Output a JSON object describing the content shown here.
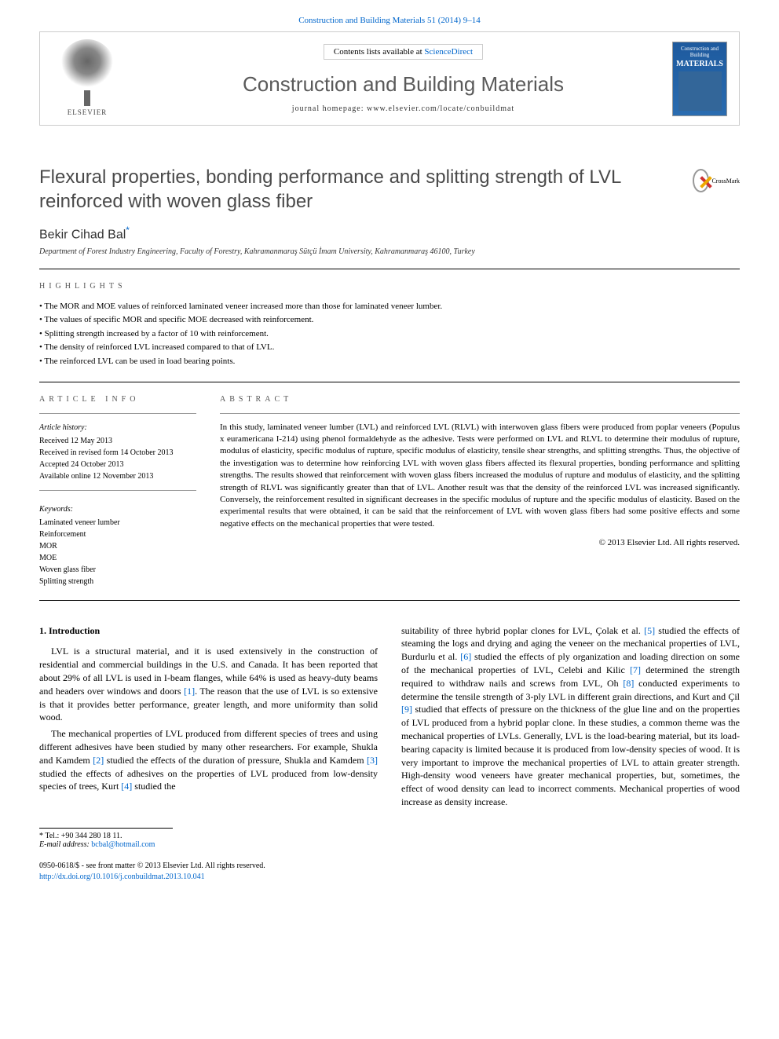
{
  "header": {
    "citation": "Construction and Building Materials 51 (2014) 9–14",
    "contents_prefix": "Contents lists available at ",
    "contents_link": "ScienceDirect",
    "journal_name": "Construction and Building Materials",
    "homepage_prefix": "journal homepage: ",
    "homepage_url": "www.elsevier.com/locate/conbuildmat",
    "elsevier_label": "ELSEVIER",
    "cover_title": "Construction and Building",
    "cover_materials": "MATERIALS",
    "crossmark": "CrossMark"
  },
  "article": {
    "title": "Flexural properties, bonding performance and splitting strength of LVL reinforced with woven glass fiber",
    "author": "Bekir Cihad Bal",
    "author_mark": "*",
    "affiliation": "Department of Forest Industry Engineering, Faculty of Forestry, Kahramanmaraş Sütçü İmam University, Kahramanmaraş 46100, Turkey"
  },
  "highlights": {
    "label": "highlights",
    "items": [
      "The MOR and MOE values of reinforced laminated veneer increased more than those for laminated veneer lumber.",
      "The values of specific MOR and specific MOE decreased with reinforcement.",
      "Splitting strength increased by a factor of 10 with reinforcement.",
      "The density of reinforced LVL increased compared to that of LVL.",
      "The reinforced LVL can be used in load bearing points."
    ]
  },
  "article_info": {
    "label": "article info",
    "history_heading": "Article history:",
    "history": [
      "Received 12 May 2013",
      "Received in revised form 14 October 2013",
      "Accepted 24 October 2013",
      "Available online 12 November 2013"
    ],
    "keywords_heading": "Keywords:",
    "keywords": [
      "Laminated veneer lumber",
      "Reinforcement",
      "MOR",
      "MOE",
      "Woven glass fiber",
      "Splitting strength"
    ]
  },
  "abstract": {
    "label": "abstract",
    "text": "In this study, laminated veneer lumber (LVL) and reinforced LVL (RLVL) with interwoven glass fibers were produced from poplar veneers (Populus x euramericana I-214) using phenol formaldehyde as the adhesive. Tests were performed on LVL and RLVL to determine their modulus of rupture, modulus of elasticity, specific modulus of rupture, specific modulus of elasticity, tensile shear strengths, and splitting strengths. Thus, the objective of the investigation was to determine how reinforcing LVL with woven glass fibers affected its flexural properties, bonding performance and splitting strengths. The results showed that reinforcement with woven glass fibers increased the modulus of rupture and modulus of elasticity, and the splitting strength of RLVL was significantly greater than that of LVL. Another result was that the density of the reinforced LVL was increased significantly. Conversely, the reinforcement resulted in significant decreases in the specific modulus of rupture and the specific modulus of elasticity. Based on the experimental results that were obtained, it can be said that the reinforcement of LVL with woven glass fibers had some positive effects and some negative effects on the mechanical properties that were tested.",
    "copyright": "© 2013 Elsevier Ltd. All rights reserved."
  },
  "body": {
    "intro_heading": "1. Introduction",
    "col1_p1": "LVL is a structural material, and it is used extensively in the construction of residential and commercial buildings in the U.S. and Canada. It has been reported that about 29% of all LVL is used in I-beam flanges, while 64% is used as heavy-duty beams and headers over windows and doors ",
    "col1_p1_ref": "[1]",
    "col1_p1_end": ". The reason that the use of LVL is so extensive is that it provides better performance, greater length, and more uniformity than solid wood.",
    "col1_p2": "The mechanical properties of LVL produced from different species of trees and using different adhesives have been studied by many other researchers. For example, Shukla and Kamdem ",
    "col1_p2_ref1": "[2]",
    "col1_p2_mid": " studied the effects of the duration of pressure, Shukla and Kamdem ",
    "col1_p2_ref2": "[3]",
    "col1_p2_mid2": " studied the effects of adhesives on the properties of LVL produced from low-density species of trees, Kurt ",
    "col1_p2_ref3": "[4]",
    "col1_p2_end": " studied the",
    "col2_p1_pre": "suitability of three hybrid poplar clones for LVL, Çolak et al. ",
    "col2_r5": "[5]",
    "col2_t1": " studied the effects of steaming the logs and drying and aging the veneer on the mechanical properties of LVL, Burdurlu et al. ",
    "col2_r6": "[6]",
    "col2_t2": " studied the effects of ply organization and loading direction on some of the mechanical properties of LVL, Celebi and Kilic ",
    "col2_r7": "[7]",
    "col2_t3": " determined the strength required to withdraw nails and screws from LVL, Oh ",
    "col2_r8": "[8]",
    "col2_t4": " conducted experiments to determine the tensile strength of 3-ply LVL in different grain directions, and Kurt and Çil ",
    "col2_r9": "[9]",
    "col2_t5": " studied that effects of pressure on the thickness of the glue line and on the properties of LVL produced from a hybrid poplar clone. In these studies, a common theme was the mechanical properties of LVLs. Generally, LVL is the load-bearing material, but its load-bearing capacity is limited because it is produced from low-density species of wood. It is very important to improve the mechanical properties of LVL to attain greater strength. High-density wood veneers have greater mechanical properties, but, sometimes, the effect of wood density can lead to incorrect comments. Mechanical properties of wood increase as density increase."
  },
  "footer": {
    "tel_label": "* Tel.: ",
    "tel": "+90 344 280 18 11.",
    "email_label": "E-mail address: ",
    "email": "bcbal@hotmail.com",
    "issn": "0950-0618/$ - see front matter © 2013 Elsevier Ltd. All rights reserved.",
    "doi": "http://dx.doi.org/10.1016/j.conbuildmat.2013.10.041"
  },
  "colors": {
    "link": "#0066cc",
    "title_gray": "#4a4a4a",
    "journal_gray": "#5a5a5a",
    "cover_bg": "#1e5a9e"
  }
}
